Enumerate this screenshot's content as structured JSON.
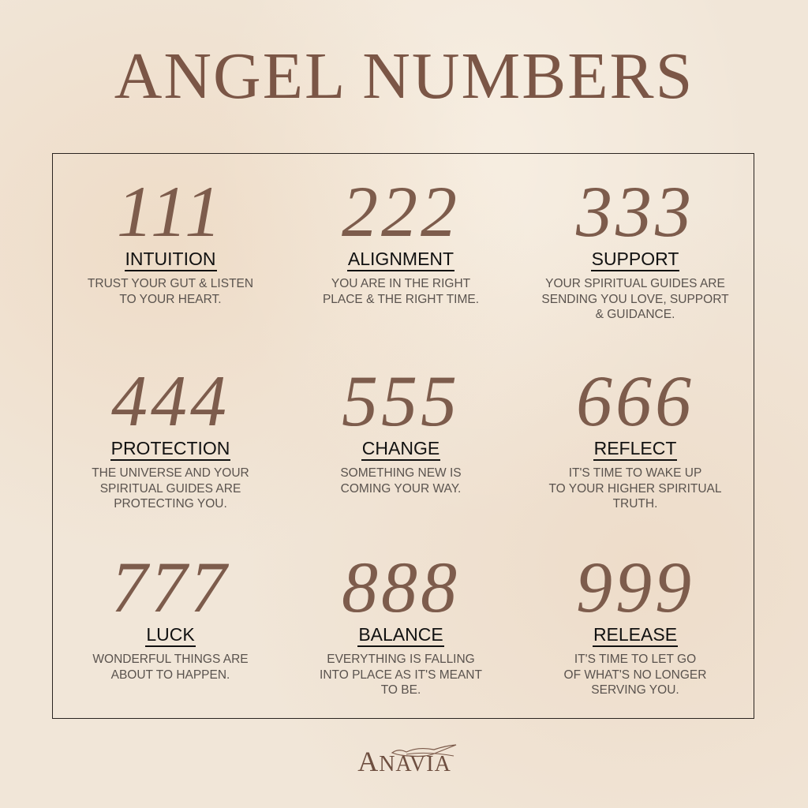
{
  "title": "ANGEL NUMBERS",
  "colors": {
    "accent": "#7d5c4c",
    "background": "#f1e6d8",
    "label": "#111111",
    "description": "#5a534e"
  },
  "items": [
    {
      "number": "111",
      "label": "INTUITION",
      "description": "TRUST YOUR GUT & LISTEN\nTO YOUR HEART."
    },
    {
      "number": "222",
      "label": "ALIGNMENT",
      "description": "YOU ARE IN THE RIGHT\nPLACE & THE RIGHT TIME."
    },
    {
      "number": "333",
      "label": "SUPPORT",
      "description": "YOUR SPIRITUAL GUIDES ARE\nSENDING YOU LOVE, SUPPORT\n& GUIDANCE."
    },
    {
      "number": "444",
      "label": "PROTECTION",
      "description": "THE UNIVERSE AND YOUR\nSPIRITUAL GUIDES ARE\nPROTECTING YOU."
    },
    {
      "number": "555",
      "label": "CHANGE",
      "description": "SOMETHING NEW IS\nCOMING YOUR WAY."
    },
    {
      "number": "666",
      "label": "REFLECT",
      "description": "IT'S TIME TO WAKE UP\nTO YOUR HIGHER SPIRITUAL\nTRUTH."
    },
    {
      "number": "777",
      "label": "LUCK",
      "description": "WONDERFUL THINGS ARE\nABOUT TO HAPPEN."
    },
    {
      "number": "888",
      "label": "BALANCE",
      "description": "EVERYTHING IS FALLING\nINTO PLACE AS IT'S MEANT\nTO BE."
    },
    {
      "number": "999",
      "label": "RELEASE",
      "description": "IT'S TIME TO LET GO\nOF WHAT'S NO LONGER\nSERVING YOU."
    }
  ],
  "logo": {
    "first": "A",
    "rest": "NAVIA",
    "icon": "bird-icon"
  }
}
